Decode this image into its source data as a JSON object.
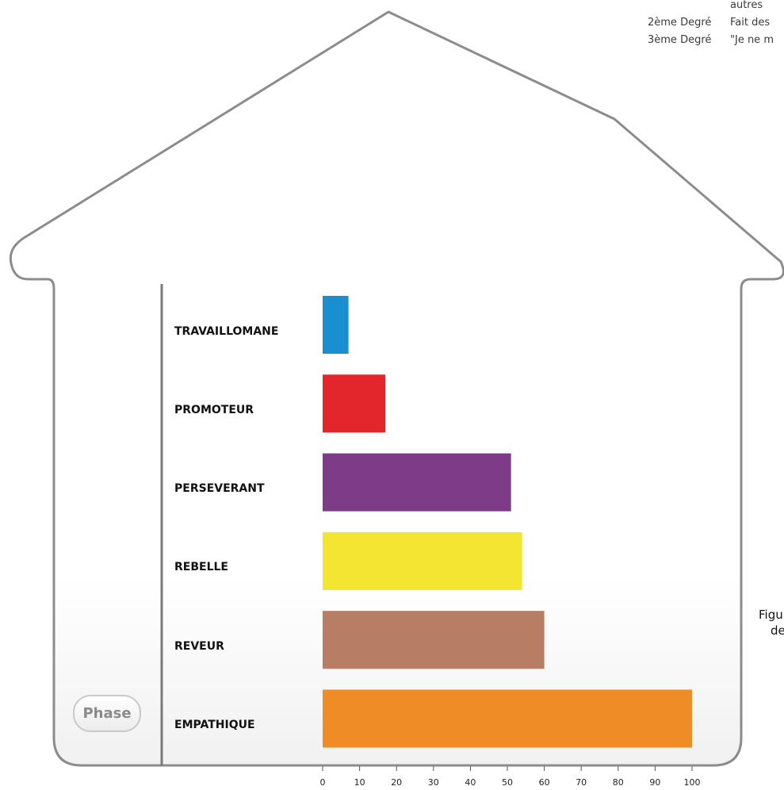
{
  "background_text": {
    "line1_right": "autres",
    "line2_left": "2ème Degré",
    "line2_right": "Fait des",
    "line3_left": "3ème Degré",
    "line3_right": "\"Je ne m",
    "caption_line1": "Figu",
    "caption_line2": "de"
  },
  "phase_button": {
    "label": "Phase"
  },
  "chart_data": {
    "type": "bar",
    "orientation": "horizontal",
    "categories": [
      "TRAVAILLOMANE",
      "PROMOTEUR",
      "PERSEVERANT",
      "REBELLE",
      "REVEUR",
      "EMPATHIQUE"
    ],
    "values": [
      7,
      17,
      51,
      54,
      60,
      100
    ],
    "colors": [
      "#1a8fd0",
      "#e3262b",
      "#7e3b87",
      "#f3e532",
      "#b87d65",
      "#f08c25"
    ],
    "xlim": [
      0,
      100
    ],
    "xticks": [
      "0",
      "10",
      "20",
      "30",
      "40",
      "50",
      "60",
      "70",
      "80",
      "90",
      "100"
    ],
    "title": "",
    "xlabel": "",
    "ylabel": "",
    "grid": false,
    "legend": "none"
  }
}
